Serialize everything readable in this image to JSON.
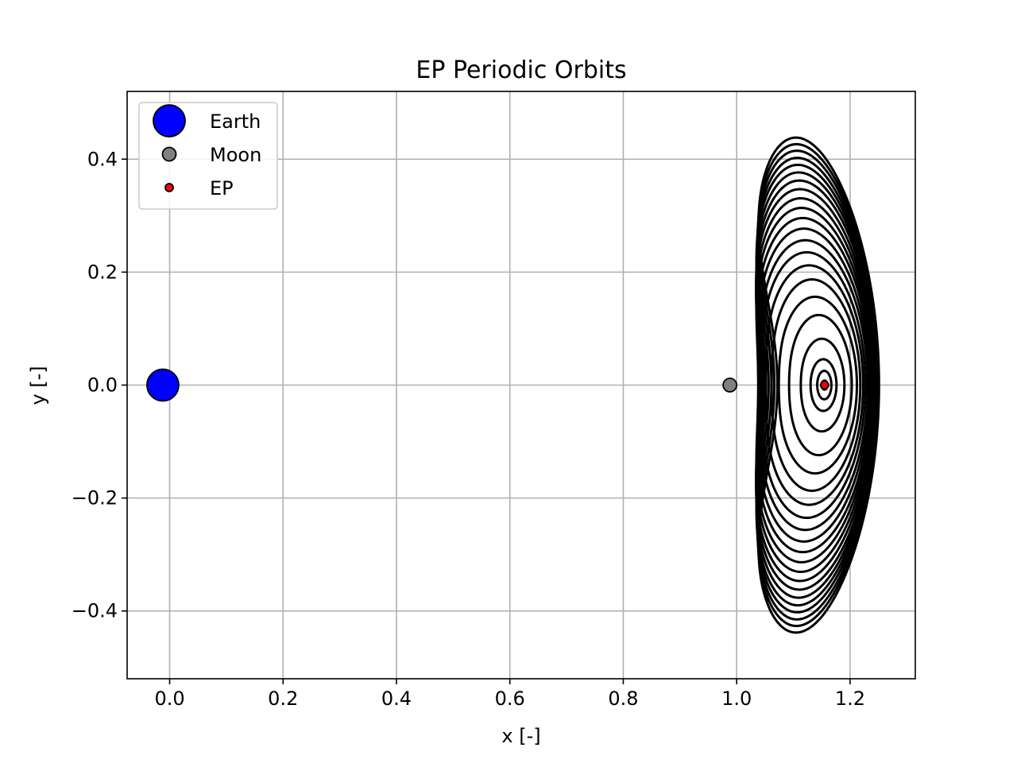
{
  "chart_data": {
    "type": "line",
    "title": "EP Periodic Orbits",
    "xlabel": "x [-]",
    "ylabel": "y [-]",
    "xlim": [
      -0.075,
      1.315
    ],
    "ylim": [
      -0.52,
      0.52
    ],
    "grid": true,
    "x_ticks": [
      0.0,
      0.2,
      0.4,
      0.6,
      0.8,
      1.0,
      1.2
    ],
    "y_ticks": [
      -0.4,
      -0.2,
      0.0,
      0.2,
      0.4
    ],
    "x_tick_labels": [
      "0.0",
      "0.2",
      "0.4",
      "0.6",
      "0.8",
      "1.0",
      "1.2"
    ],
    "y_tick_labels": [
      "−0.4",
      "−0.2",
      "0.0",
      "0.2",
      "0.4"
    ],
    "legend_position": "upper-left",
    "bodies": [
      {
        "name": "Earth",
        "x": -0.012,
        "y": 0.0,
        "color": "#0000ff",
        "marker": "large-circle"
      },
      {
        "name": "Moon",
        "x": 0.988,
        "y": 0.0,
        "color": "#808080",
        "marker": "medium-circle"
      },
      {
        "name": "EP",
        "x": 1.155,
        "y": 0.0,
        "color": "#ff0000",
        "marker": "small-circle"
      }
    ],
    "orbit_family": {
      "color": "#000000",
      "center_x": 1.155,
      "center_y": 0.0,
      "count": 22,
      "orbits": [
        {
          "x_min": 1.15,
          "x_max": 1.16,
          "y_max": 0.008
        },
        {
          "x_min": 1.142,
          "x_max": 1.167,
          "y_max": 0.025
        },
        {
          "x_min": 1.13,
          "x_max": 1.176,
          "y_max": 0.045
        },
        {
          "x_min": 1.112,
          "x_max": 1.19,
          "y_max": 0.08
        },
        {
          "x_min": 1.09,
          "x_max": 1.203,
          "y_max": 0.12
        },
        {
          "x_min": 1.07,
          "x_max": 1.212,
          "y_max": 0.15
        },
        {
          "x_min": 1.055,
          "x_max": 1.218,
          "y_max": 0.178
        },
        {
          "x_min": 1.042,
          "x_max": 1.223,
          "y_max": 0.2
        },
        {
          "x_min": 1.032,
          "x_max": 1.227,
          "y_max": 0.22
        },
        {
          "x_min": 1.025,
          "x_max": 1.231,
          "y_max": 0.238
        },
        {
          "x_min": 1.019,
          "x_max": 1.234,
          "y_max": 0.255
        },
        {
          "x_min": 1.014,
          "x_max": 1.237,
          "y_max": 0.27
        },
        {
          "x_min": 1.01,
          "x_max": 1.239,
          "y_max": 0.284
        },
        {
          "x_min": 1.007,
          "x_max": 1.241,
          "y_max": 0.297
        },
        {
          "x_min": 1.004,
          "x_max": 1.243,
          "y_max": 0.309
        },
        {
          "x_min": 1.002,
          "x_max": 1.245,
          "y_max": 0.32
        },
        {
          "x_min": 1.0,
          "x_max": 1.246,
          "y_max": 0.33
        },
        {
          "x_min": 0.998,
          "x_max": 1.247,
          "y_max": 0.339
        },
        {
          "x_min": 0.997,
          "x_max": 1.248,
          "y_max": 0.347
        },
        {
          "x_min": 0.996,
          "x_max": 1.249,
          "y_max": 0.355
        },
        {
          "x_min": 0.995,
          "x_max": 1.25,
          "y_max": 0.362
        },
        {
          "x_min": 0.994,
          "x_max": 1.251,
          "y_max": 0.369
        }
      ]
    }
  }
}
